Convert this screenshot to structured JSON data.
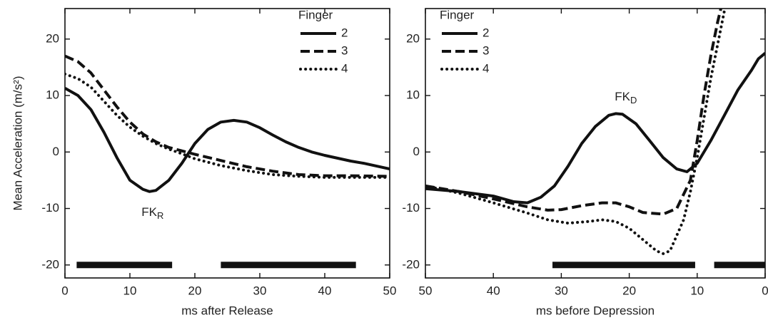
{
  "chart_data": [
    {
      "type": "line",
      "xlabel": "ms after Release",
      "ylabel": "Mean Acceleration (m/s²)",
      "xlim": [
        0,
        50
      ],
      "ylim": [
        -22.3,
        25.4
      ],
      "xticks": [
        0,
        10,
        20,
        30,
        40,
        50
      ],
      "yticks": [
        -20,
        -10,
        0,
        10,
        20
      ],
      "legend": "upper right",
      "legend_title": "Finger",
      "series": [
        {
          "name": "2",
          "color": "#111111",
          "dash": "solid",
          "x": [
            0,
            2,
            4,
            6,
            8,
            10,
            12,
            13,
            14,
            16,
            18,
            20,
            22,
            24,
            26,
            28,
            30,
            32,
            34,
            36,
            38,
            40,
            42,
            44,
            46,
            48,
            50
          ],
          "values": [
            11.3,
            10,
            7.5,
            3.5,
            -1,
            -5,
            -6.6,
            -7,
            -6.8,
            -5,
            -2,
            1.5,
            4,
            5.3,
            5.6,
            5.3,
            4.3,
            3,
            1.8,
            0.8,
            0,
            -0.6,
            -1.1,
            -1.6,
            -2,
            -2.5,
            -3
          ]
        },
        {
          "name": "3",
          "color": "#111111",
          "dash": "dashed",
          "x": [
            0,
            2,
            4,
            6,
            8,
            10,
            12,
            14,
            16,
            18,
            20,
            24,
            28,
            32,
            36,
            40,
            44,
            50
          ],
          "values": [
            17,
            16,
            14,
            11,
            8,
            5.3,
            3.2,
            1.8,
            0.8,
            0.2,
            -0.4,
            -1.5,
            -2.6,
            -3.4,
            -4,
            -4.2,
            -4.2,
            -4.3
          ]
        },
        {
          "name": "4",
          "color": "#111111",
          "dash": "dotted",
          "x": [
            0,
            2,
            4,
            6,
            8,
            10,
            12,
            14,
            16,
            18,
            20,
            24,
            28,
            32,
            36,
            40,
            44,
            50
          ],
          "values": [
            13.8,
            13,
            11.5,
            9,
            6.5,
            4.4,
            2.8,
            1.5,
            0.5,
            -0.3,
            -1.2,
            -2.4,
            -3.3,
            -4,
            -4.3,
            -4.5,
            -4.5,
            -4.5
          ]
        }
      ],
      "bar_level": -20,
      "bars": [
        {
          "start": 1.8,
          "end": 16.5
        },
        {
          "start": 24,
          "end": 44.8
        }
      ],
      "annotations": [
        {
          "text": "FK",
          "subscript": "R",
          "x": 13.5,
          "y": -10.8
        }
      ]
    },
    {
      "type": "line",
      "xlabel": "ms before Depression",
      "xlim": [
        50,
        0
      ],
      "ylim": [
        -22.3,
        25.4
      ],
      "xticks": [
        50,
        40,
        30,
        20,
        10,
        0
      ],
      "yticks": [
        -20,
        -10,
        0,
        10,
        20
      ],
      "legend": "upper left",
      "legend_title": "Finger",
      "series": [
        {
          "name": "2",
          "color": "#111111",
          "dash": "solid",
          "x": [
            50,
            45,
            40,
            37,
            35,
            33,
            31,
            29,
            27,
            25,
            23,
            22,
            21,
            19,
            17,
            15,
            13,
            11.5,
            10,
            8,
            6,
            4,
            2,
            1,
            0
          ],
          "values": [
            -6.5,
            -7,
            -7.8,
            -8.8,
            -9,
            -8,
            -6,
            -2.5,
            1.5,
            4.5,
            6.5,
            6.8,
            6.7,
            5,
            2,
            -1,
            -3,
            -3.5,
            -2,
            2,
            6.5,
            11,
            14.5,
            16.5,
            17.5
          ]
        },
        {
          "name": "3",
          "color": "#111111",
          "dash": "dashed",
          "x": [
            50,
            45,
            40,
            35,
            32,
            30,
            27,
            24,
            22,
            20,
            18,
            15,
            13,
            11,
            10,
            9,
            8,
            7,
            6
          ],
          "values": [
            -6,
            -7,
            -8.3,
            -9.7,
            -10.3,
            -10.2,
            -9.5,
            -9,
            -9,
            -9.7,
            -10.7,
            -11,
            -10,
            -5,
            2,
            10,
            17,
            23,
            28
          ]
        },
        {
          "name": "4",
          "color": "#111111",
          "dash": "dotted",
          "x": [
            50,
            45,
            40,
            35,
            32,
            29,
            26,
            24,
            22,
            20,
            18,
            16,
            15,
            14,
            12,
            11,
            10,
            9,
            8,
            7,
            6,
            5.5
          ],
          "values": [
            -6,
            -7.3,
            -9,
            -10.8,
            -12,
            -12.6,
            -12.3,
            -12,
            -12.3,
            -13.5,
            -15.5,
            -17.5,
            -18,
            -17.5,
            -12,
            -7,
            -1,
            6,
            13,
            19,
            25,
            28
          ]
        }
      ],
      "bar_level": -20,
      "bars": [
        {
          "start": 31.3,
          "end": 10.3
        },
        {
          "start": 7.5,
          "end": 0
        }
      ],
      "annotations": [
        {
          "text": "FK",
          "subscript": "D",
          "x": 20.5,
          "y": 9.6
        }
      ]
    }
  ]
}
